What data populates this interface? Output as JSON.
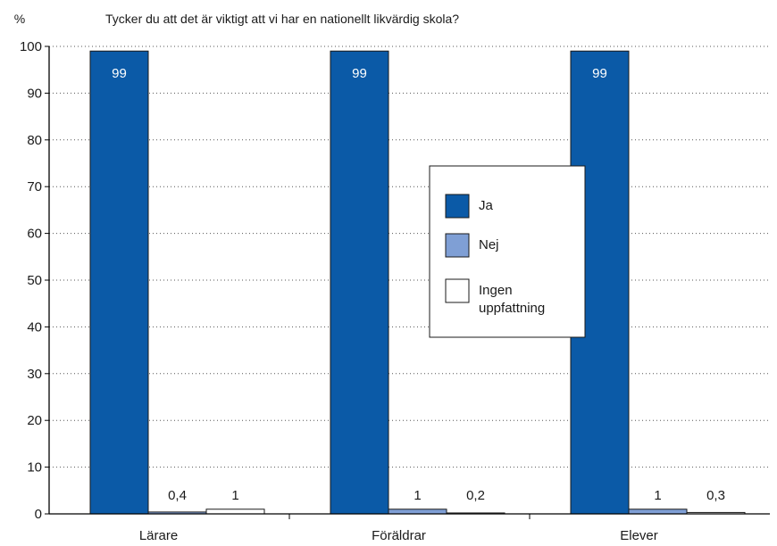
{
  "chart_data": {
    "type": "bar",
    "title": "Tycker du att det är viktigt att vi har en nationellt likvärdig skola?",
    "ylabel": "%",
    "xlabel": "",
    "ylim": [
      0,
      100
    ],
    "yticks": [
      0,
      10,
      20,
      30,
      40,
      50,
      60,
      70,
      80,
      90,
      100
    ],
    "grid": "horizontal dotted",
    "legend_position": "center-right",
    "categories": [
      "Lärare",
      "Föräldrar",
      "Elever"
    ],
    "series": [
      {
        "name": "Ja",
        "values": [
          99,
          99,
          99
        ],
        "labels": [
          "99",
          "99",
          "99"
        ],
        "color": "#0b5aa7"
      },
      {
        "name": "Nej",
        "values": [
          0.4,
          1,
          1
        ],
        "labels": [
          "0,4",
          "1",
          "1"
        ],
        "color": "#7f9fd5"
      },
      {
        "name": "Ingen uppfattning",
        "legend_lines": [
          "Ingen",
          "uppfattning"
        ],
        "values": [
          1,
          0.2,
          0.3
        ],
        "labels": [
          "1",
          "0,2",
          "0,3"
        ],
        "color": "#ffffff"
      }
    ]
  }
}
